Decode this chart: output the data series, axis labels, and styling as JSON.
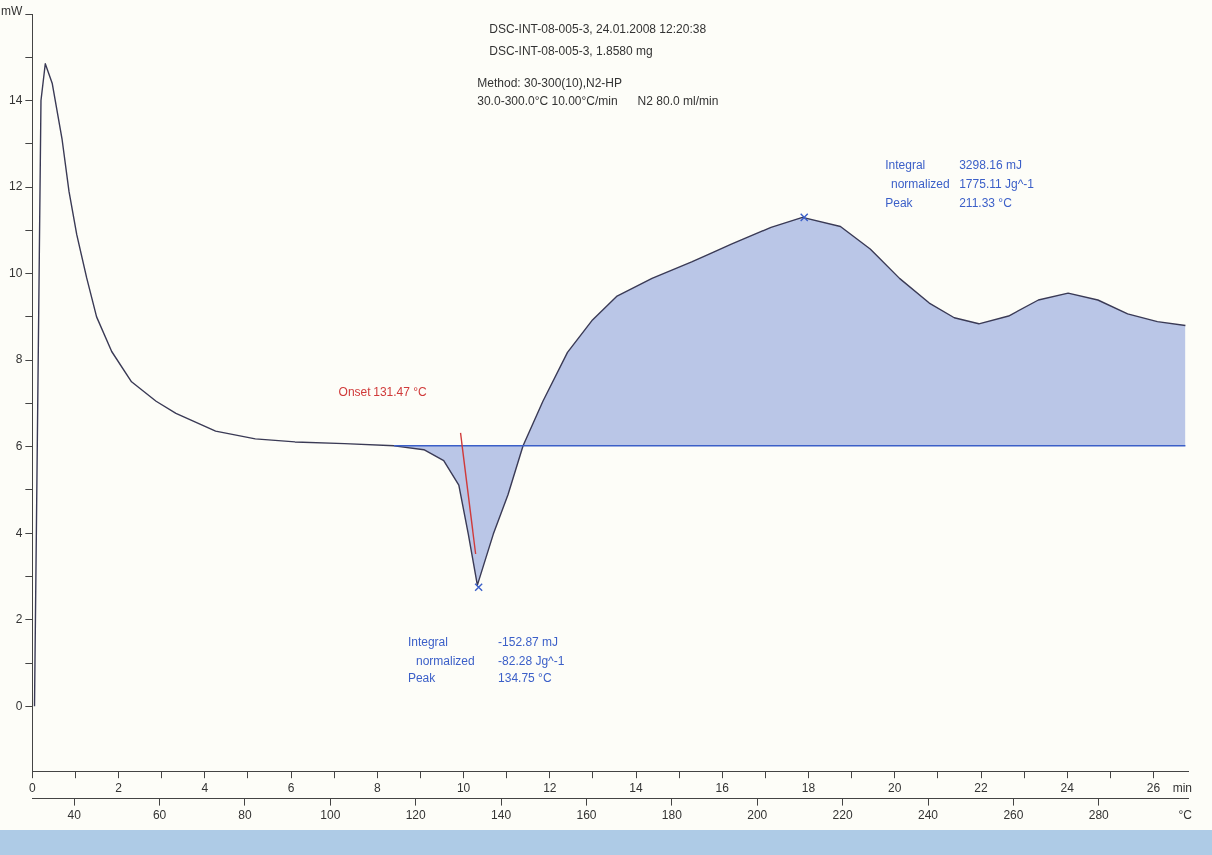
{
  "chart_data": {
    "type": "line",
    "title": "DSC-INT-08-005-3, 24.01.2008 12:20:38",
    "subtitle": "DSC-INT-08-005-3, 1.8580 mg",
    "annotations": [
      "Method: 30-300(10),N2-HP",
      "30.0-300.0°C 10.00°C/min      N2 80.0 ml/min",
      "Onset  131.47 °C",
      "Integral  -152.87 mJ",
      "normalized  -82.28 Jg^-1",
      "Peak  134.75 °C",
      "Integral  3298.16 mJ",
      "normalized  1775.11 Jg^-1",
      "Peak  211.33 °C"
    ],
    "xlabel": "min",
    "x2label": "°C",
    "ylabel": "mW",
    "xlim": [
      0,
      26.8
    ],
    "xticks": [
      0,
      {
        "value": 1,
        "label": null
      },
      2,
      {
        "value": 3,
        "label": null
      },
      4,
      {
        "value": 5,
        "label": null
      },
      6,
      {
        "value": 7,
        "label": null
      },
      8,
      {
        "value": 9,
        "label": null
      },
      10,
      {
        "value": 11,
        "label": null
      },
      12,
      {
        "value": 13,
        "label": null
      },
      14,
      {
        "value": 15,
        "label": null
      },
      16,
      {
        "value": 17,
        "label": null
      },
      18,
      {
        "value": 19,
        "label": null
      },
      20,
      {
        "value": 21,
        "label": null
      },
      22,
      {
        "value": 23,
        "label": null
      },
      24,
      {
        "value": 25,
        "label": null
      },
      26
    ],
    "x2lim": [
      30.2,
      300.9
    ],
    "x2ticks": [
      40,
      60,
      80,
      100,
      120,
      140,
      160,
      180,
      200,
      220,
      240,
      260,
      280
    ],
    "ylim": [
      -1.5,
      16
    ],
    "yticks": [
      0,
      {
        "value": 1,
        "label": null
      },
      2,
      {
        "value": 3,
        "label": null
      },
      4,
      {
        "value": 5,
        "label": null
      },
      6,
      {
        "value": 7,
        "label": null
      },
      8,
      {
        "value": 9,
        "label": null
      },
      10,
      {
        "value": 11,
        "label": null
      },
      12,
      {
        "value": 13,
        "label": null
      },
      14,
      {
        "value": 15,
        "label": null
      },
      {
        "value": 16,
        "label": null
      }
    ],
    "grid": false,
    "legend": false,
    "series": [
      {
        "type": "line",
        "color": "#3a3a55",
        "x": [
          0.05,
          0.2,
          0.3,
          0.46,
          0.69,
          0.85,
          1.03,
          1.26,
          1.49,
          1.84,
          2.3,
          2.87,
          3.33,
          4.25,
          5.17,
          6.09,
          7.24,
          8.39,
          9.08,
          9.54,
          9.89,
          10.11,
          10.32,
          10.69,
          11.03,
          11.38,
          11.84,
          12.41,
          12.99,
          13.56,
          14.37,
          15.29,
          16.21,
          17.13,
          17.86,
          18.74,
          19.43,
          20.11,
          20.8,
          21.38,
          21.95,
          22.64,
          23.33,
          24.02,
          24.71,
          25.4,
          26.09,
          26.74
        ],
        "values": [
          0,
          14,
          14.85,
          14.4,
          13.1,
          11.9,
          10.9,
          9.9,
          9.0,
          8.2,
          7.5,
          7.05,
          6.77,
          6.36,
          6.18,
          6.11,
          6.07,
          6.02,
          5.93,
          5.68,
          5.11,
          3.98,
          2.8,
          3.98,
          4.89,
          6.02,
          7.05,
          8.18,
          8.93,
          9.48,
          9.89,
          10.27,
          10.68,
          11.07,
          11.3,
          11.09,
          10.57,
          9.89,
          9.32,
          8.98,
          8.84,
          9.02,
          9.39,
          9.55,
          9.39,
          9.07,
          8.89,
          8.8
        ]
      },
      {
        "type": "line",
        "color": "#3b5fc8",
        "x": [
          8.39,
          9.08,
          9.54,
          9.89,
          10.11,
          10.32,
          10.69,
          11.03,
          11.38,
          11.84,
          12.41,
          12.99,
          13.56,
          14.37,
          15.29,
          16.21,
          17.13,
          17.86,
          18.74,
          19.43,
          20.11,
          20.8,
          21.38,
          21.95,
          22.64,
          23.33,
          24.02,
          24.71,
          25.4,
          26.09,
          26.74
        ],
        "values": [
          6.02,
          6.02,
          6.02,
          6.02,
          6.02,
          6.02,
          6.02,
          6.02,
          6.02,
          6.02,
          6.02,
          6.02,
          6.02,
          6.02,
          6.02,
          6.02,
          6.02,
          6.02,
          6.02,
          6.02,
          6.02,
          6.02,
          6.02,
          6.02,
          6.02,
          6.02,
          6.02,
          6.02,
          6.02,
          6.02,
          6.02
        ],
        "lower": [
          6.02,
          6.02,
          6.02,
          6.02,
          6.02,
          6.02,
          6.02,
          6.02,
          6.02,
          6.02,
          6.02,
          6.02,
          6.02,
          6.02,
          6.02,
          6.02,
          6.02,
          6.02,
          6.02,
          6.02,
          6.02,
          6.02,
          6.02,
          6.02,
          6.02,
          6.02,
          6.02,
          6.02,
          6.02,
          6.02,
          6.02
        ],
        "upper": [
          6.02,
          5.93,
          5.68,
          5.11,
          3.98,
          2.8,
          3.98,
          4.89,
          6.02,
          7.05,
          8.18,
          8.93,
          9.48,
          9.89,
          10.27,
          10.68,
          11.07,
          11.3,
          11.09,
          10.57,
          9.89,
          9.32,
          8.98,
          8.84,
          9.02,
          9.39,
          9.55,
          9.39,
          9.07,
          8.89,
          8.8
        ]
      },
      {
        "type": "line",
        "color": "#d03a3a",
        "x": [
          9.93,
          10.28
        ],
        "values": [
          6.32,
          3.52
        ]
      },
      {
        "type": "scatter",
        "color": "#3b5fc8",
        "marker": "cross",
        "x": [
          10.35,
          17.9
        ],
        "values": [
          2.75,
          11.3
        ]
      }
    ]
  }
}
